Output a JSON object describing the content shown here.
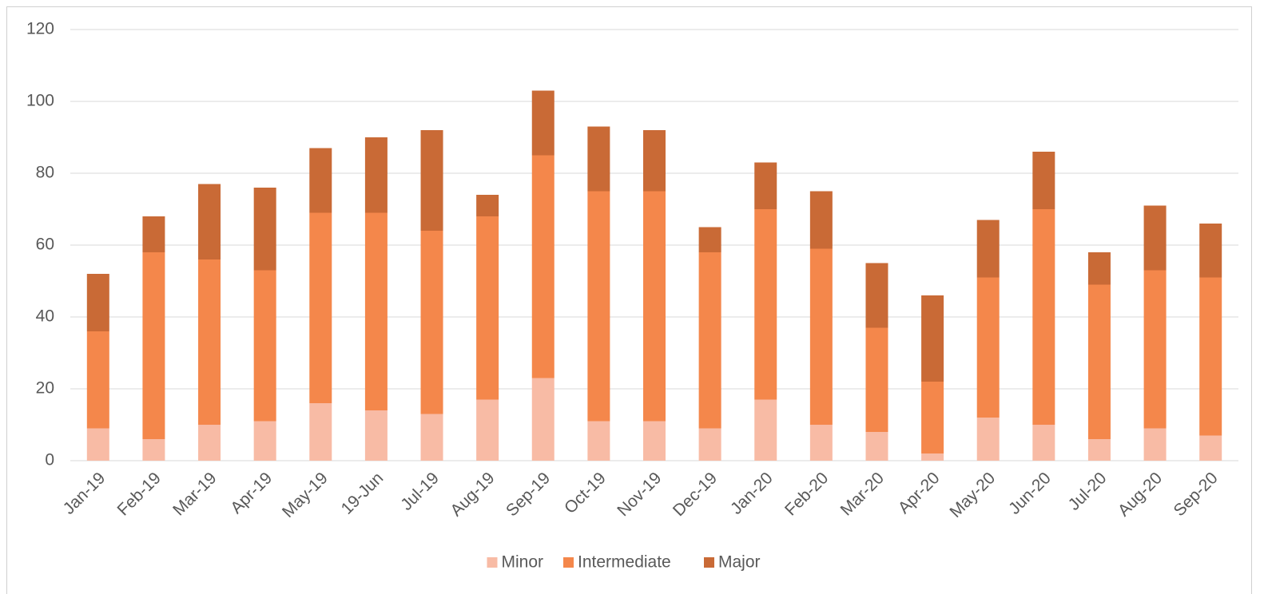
{
  "chart_data": {
    "type": "stacked_bar",
    "categories": [
      "Jan-19",
      "Feb-19",
      "Mar-19",
      "Apr-19",
      "May-19",
      "19-Jun",
      "Jul-19",
      "Aug-19",
      "Sep-19",
      "Oct-19",
      "Nov-19",
      "Dec-19",
      "Jan-20",
      "Feb-20",
      "Mar-20",
      "Apr-20",
      "May-20",
      "Jun-20",
      "Jul-20",
      "Aug-20",
      "Sep-20"
    ],
    "series": [
      {
        "name": "Minor",
        "color": "#f8bba5",
        "values": [
          9,
          6,
          10,
          11,
          16,
          14,
          13,
          17,
          23,
          11,
          11,
          9,
          17,
          10,
          8,
          2,
          12,
          10,
          6,
          9,
          7
        ]
      },
      {
        "name": "Intermediate",
        "color": "#f4874b",
        "values": [
          27,
          52,
          46,
          42,
          53,
          55,
          51,
          51,
          62,
          64,
          64,
          49,
          53,
          49,
          29,
          20,
          39,
          60,
          43,
          44,
          44
        ]
      },
      {
        "name": "Major",
        "color": "#c96a36",
        "values": [
          16,
          10,
          21,
          23,
          18,
          21,
          28,
          6,
          18,
          18,
          17,
          7,
          13,
          16,
          18,
          24,
          16,
          16,
          9,
          18,
          15
        ]
      }
    ],
    "ylim": [
      0,
      120
    ],
    "yticks": [
      0,
      20,
      40,
      60,
      80,
      100,
      120
    ],
    "grid": true,
    "legend": "bottom"
  }
}
